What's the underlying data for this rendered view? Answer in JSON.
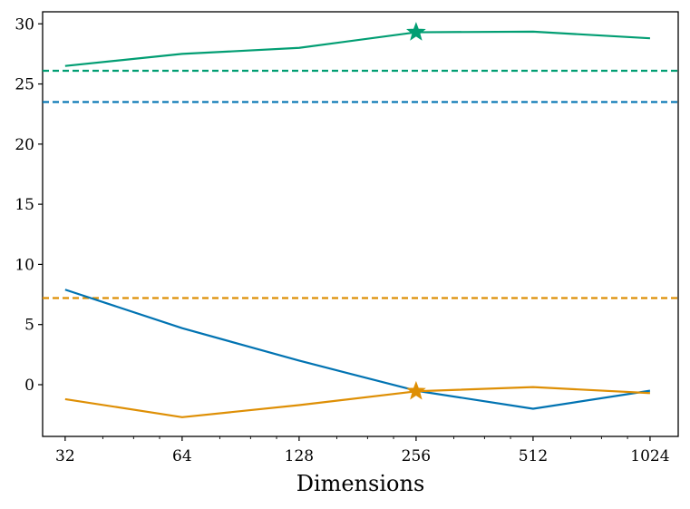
{
  "chart_data": {
    "type": "line",
    "title": "",
    "xlabel": "Dimensions",
    "ylabel": "",
    "x_scale": "log2",
    "x": [
      32,
      64,
      128,
      256,
      512,
      1024
    ],
    "x_tick_labels": [
      "32",
      "64",
      "128",
      "256",
      "512",
      "1024"
    ],
    "xlim": [
      28,
      1210
    ],
    "ylim": [
      -4.3,
      31
    ],
    "y_ticks": [
      0,
      5,
      10,
      15,
      20,
      25,
      30
    ],
    "y_tick_labels": [
      "0",
      "5",
      "10",
      "15",
      "20",
      "25",
      "30"
    ],
    "grid": false,
    "legend": "none",
    "series": [
      {
        "name": "green",
        "color": "#029e73",
        "values": [
          26.5,
          27.5,
          28.0,
          29.3,
          29.35,
          28.8
        ],
        "baseline": 26.1,
        "best_x": 256,
        "best_value": 29.3
      },
      {
        "name": "blue",
        "color": "#0173b2",
        "values": [
          7.9,
          4.7,
          2.0,
          -0.5,
          -2.0,
          -0.5
        ],
        "baseline": 23.5
      },
      {
        "name": "orange",
        "color": "#de8f05",
        "values": [
          -1.2,
          -2.7,
          -1.7,
          -0.55,
          -0.2,
          -0.7
        ],
        "baseline": 7.2,
        "best_x": 256,
        "best_value": -0.55
      }
    ]
  }
}
